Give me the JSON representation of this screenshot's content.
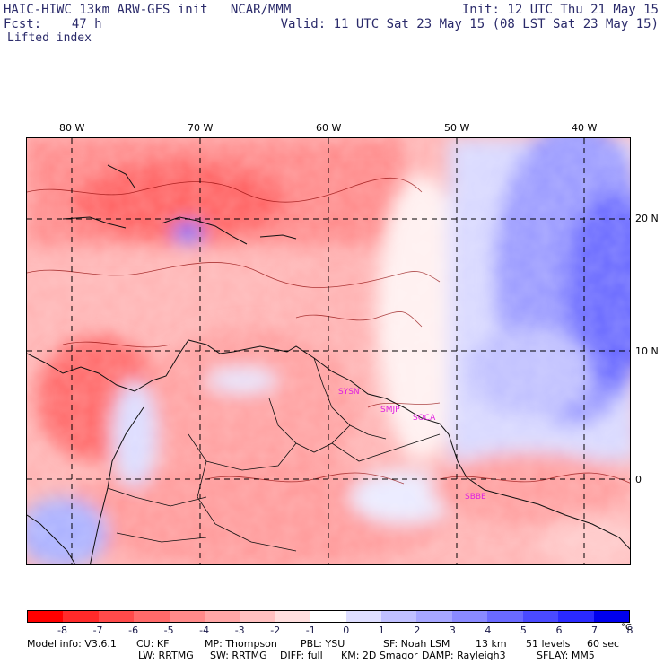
{
  "header": {
    "title_left": "HAIC-HIWC 13km ARW-GFS init   NCAR/MMM",
    "forecast": "Fcst:    47 h",
    "field": "Lifted index",
    "init": "Init: 12 UTC Thu 21 May 15",
    "valid": "Valid: 11 UTC Sat 23 May 15 (08 LST Sat 23 May 15)"
  },
  "map": {
    "lon_labels": [
      "80 W",
      "70 W",
      "60 W",
      "50 W",
      "40 W"
    ],
    "lat_labels": [
      "20 N",
      "10 N",
      "0"
    ],
    "stations": [
      "SYSN",
      "SMJP",
      "SOCA",
      "SBBE"
    ],
    "station_color": "#e020e0"
  },
  "colorbar": {
    "colors": [
      "#ff0000",
      "#ff2a2a",
      "#ff4a4a",
      "#ff6a6a",
      "#ff8a8a",
      "#ffa6a6",
      "#ffc0c0",
      "#ffdede",
      "#ffffff",
      "#dedeff",
      "#c0c0ff",
      "#a6a6ff",
      "#8a8aff",
      "#6a6aff",
      "#4a4aff",
      "#2a2aff",
      "#0000ee"
    ],
    "ticks": [
      "-8",
      "-7",
      "-6",
      "-5",
      "-4",
      "-3",
      "-2",
      "-1",
      "0",
      "1",
      "2",
      "3",
      "4",
      "5",
      "6",
      "7",
      "8"
    ],
    "unit": "°C"
  },
  "footer": {
    "line1": [
      "Model info: V3.6.1",
      "CU: KF",
      "MP: Thompson",
      "PBL: YSU",
      "SF: Noah LSM",
      "13 km",
      "51 levels",
      "60 sec"
    ],
    "line2": [
      "LW: RRTMG",
      "SW: RRTMG",
      "DIFF: full",
      "KM: 2D Smagor",
      "DAMP: Rayleigh3",
      "SFLAY: MM5"
    ]
  }
}
